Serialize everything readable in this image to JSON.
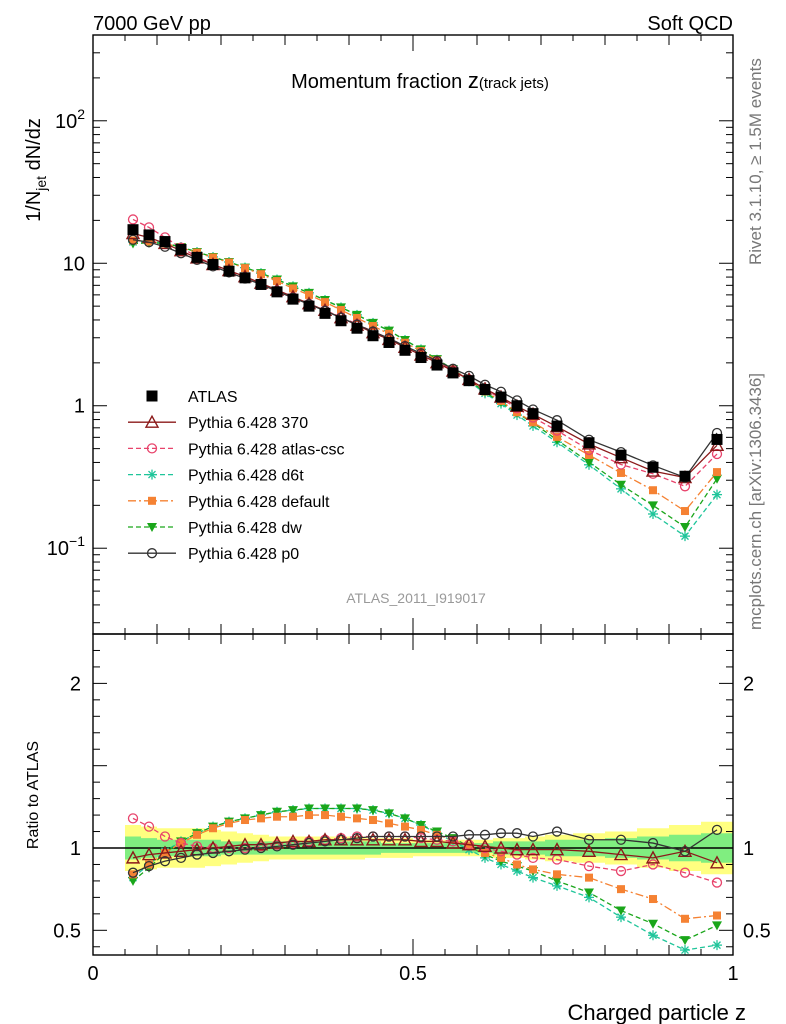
{
  "header": {
    "left": "7000 GeV pp",
    "right": "Soft QCD"
  },
  "side_text": {
    "rivet": "Rivet 3.1.10, ≥ 1.5M events",
    "mcplots": "mcplots.cern.ch [arXiv:1306.3436]"
  },
  "watermark": "ATLAS_2011_I919017",
  "colors": {
    "ATLAS": "#000000",
    "370": "#8b1a1a",
    "atlas-csc": "#e8436b",
    "d6t": "#1fc59a",
    "default": "#f58233",
    "dw": "#1aa61a",
    "p0": "#333333",
    "band_outer": "#ffff80",
    "band_inner": "#80ee80"
  },
  "chart_data": {
    "type": "line",
    "title_main": "Momentum fraction ",
    "title_var": "z",
    "title_sub": "(track jets)",
    "xlabel": "Charged particle z",
    "ylabel": "1/N_jet dN/dz",
    "ratio_ylabel": "Ratio to ATLAS",
    "xlim": [
      0,
      1
    ],
    "ylim": [
      0.025,
      400
    ],
    "yscale": "log",
    "ratio_ylim": [
      0.35,
      2.3
    ],
    "x_ticks": [
      "0",
      "0.5",
      "1"
    ],
    "y_ticks": [
      "10^-1",
      "1",
      "10",
      "10^2"
    ],
    "ratio_ticks": [
      "0.5",
      "1",
      "2"
    ],
    "legend_position": "center-left",
    "x": [
      0.0625,
      0.0875,
      0.1125,
      0.1375,
      0.1625,
      0.1875,
      0.2125,
      0.2375,
      0.2625,
      0.2875,
      0.3125,
      0.3375,
      0.3625,
      0.3875,
      0.4125,
      0.4375,
      0.4625,
      0.4875,
      0.5125,
      0.5375,
      0.5625,
      0.5875,
      0.6125,
      0.6375,
      0.6625,
      0.6875,
      0.725,
      0.775,
      0.825,
      0.875,
      0.925,
      0.975
    ],
    "series": [
      {
        "name": "ATLAS",
        "key": "ATLAS",
        "values": [
          17.2,
          15.8,
          14.2,
          12.5,
          11.0,
          9.8,
          8.8,
          7.9,
          7.1,
          6.3,
          5.6,
          5.0,
          4.45,
          3.95,
          3.5,
          3.1,
          2.78,
          2.45,
          2.18,
          1.93,
          1.7,
          1.5,
          1.3,
          1.15,
          1.0,
          0.88,
          0.72,
          0.55,
          0.45,
          0.37,
          0.32,
          0.58
        ]
      },
      {
        "name": "Pythia 6.428 370",
        "key": "370",
        "ratio": [
          0.94,
          0.96,
          0.97,
          0.98,
          0.99,
          1.0,
          1.01,
          1.02,
          1.02,
          1.03,
          1.04,
          1.04,
          1.05,
          1.05,
          1.05,
          1.05,
          1.05,
          1.05,
          1.04,
          1.04,
          1.03,
          1.02,
          1.01,
          1.0,
          0.99,
          0.99,
          0.99,
          0.98,
          0.96,
          0.94,
          0.98,
          0.91
        ]
      },
      {
        "name": "Pythia 6.428 atlas-csc",
        "key": "atlas-csc",
        "ratio": [
          1.18,
          1.13,
          1.07,
          1.03,
          1.01,
          1.0,
          1.0,
          1.0,
          1.01,
          1.02,
          1.03,
          1.04,
          1.05,
          1.06,
          1.07,
          1.07,
          1.07,
          1.07,
          1.06,
          1.05,
          1.04,
          1.02,
          1.0,
          0.98,
          0.96,
          0.94,
          0.93,
          0.89,
          0.86,
          0.9,
          0.85,
          0.79
        ]
      },
      {
        "name": "Pythia 6.428 d6t",
        "key": "d6t",
        "ratio": [
          0.82,
          0.9,
          0.98,
          1.04,
          1.09,
          1.13,
          1.16,
          1.18,
          1.2,
          1.22,
          1.23,
          1.24,
          1.24,
          1.24,
          1.24,
          1.23,
          1.21,
          1.18,
          1.14,
          1.09,
          1.04,
          0.99,
          0.94,
          0.9,
          0.86,
          0.82,
          0.77,
          0.7,
          0.58,
          0.47,
          0.38,
          0.41
        ]
      },
      {
        "name": "Pythia 6.428 default",
        "key": "default",
        "ratio": [
          0.84,
          0.9,
          0.97,
          1.03,
          1.08,
          1.12,
          1.15,
          1.17,
          1.18,
          1.19,
          1.19,
          1.2,
          1.2,
          1.19,
          1.18,
          1.17,
          1.15,
          1.13,
          1.11,
          1.08,
          1.05,
          1.01,
          0.97,
          0.94,
          0.9,
          0.87,
          0.84,
          0.82,
          0.75,
          0.69,
          0.57,
          0.59
        ]
      },
      {
        "name": "Pythia 6.428 dw",
        "key": "dw",
        "ratio": [
          0.8,
          0.88,
          0.97,
          1.04,
          1.09,
          1.13,
          1.16,
          1.18,
          1.2,
          1.22,
          1.23,
          1.24,
          1.24,
          1.24,
          1.24,
          1.23,
          1.21,
          1.18,
          1.14,
          1.1,
          1.06,
          1.01,
          0.96,
          0.92,
          0.89,
          0.86,
          0.8,
          0.73,
          0.62,
          0.54,
          0.44,
          0.53
        ]
      },
      {
        "name": "Pythia 6.428 p0",
        "key": "p0",
        "ratio": [
          0.85,
          0.89,
          0.92,
          0.94,
          0.96,
          0.97,
          0.98,
          0.99,
          1.0,
          1.01,
          1.02,
          1.03,
          1.04,
          1.05,
          1.06,
          1.07,
          1.07,
          1.07,
          1.07,
          1.07,
          1.07,
          1.08,
          1.08,
          1.09,
          1.09,
          1.07,
          1.1,
          1.05,
          1.05,
          1.03,
          0.98,
          1.11
        ]
      }
    ],
    "band_outer_halfwidth": [
      0.14,
      0.13,
      0.12,
      0.12,
      0.12,
      0.11,
      0.1,
      0.09,
      0.08,
      0.07,
      0.07,
      0.07,
      0.07,
      0.07,
      0.07,
      0.06,
      0.06,
      0.06,
      0.05,
      0.05,
      0.05,
      0.05,
      0.05,
      0.06,
      0.06,
      0.07,
      0.08,
      0.09,
      0.1,
      0.12,
      0.14,
      0.16
    ],
    "band_inner_halfwidth": [
      0.07,
      0.06,
      0.05,
      0.05,
      0.05,
      0.05,
      0.04,
      0.04,
      0.04,
      0.04,
      0.04,
      0.04,
      0.04,
      0.04,
      0.04,
      0.04,
      0.03,
      0.03,
      0.03,
      0.03,
      0.03,
      0.03,
      0.03,
      0.04,
      0.04,
      0.04,
      0.05,
      0.05,
      0.06,
      0.07,
      0.08,
      0.09
    ]
  }
}
